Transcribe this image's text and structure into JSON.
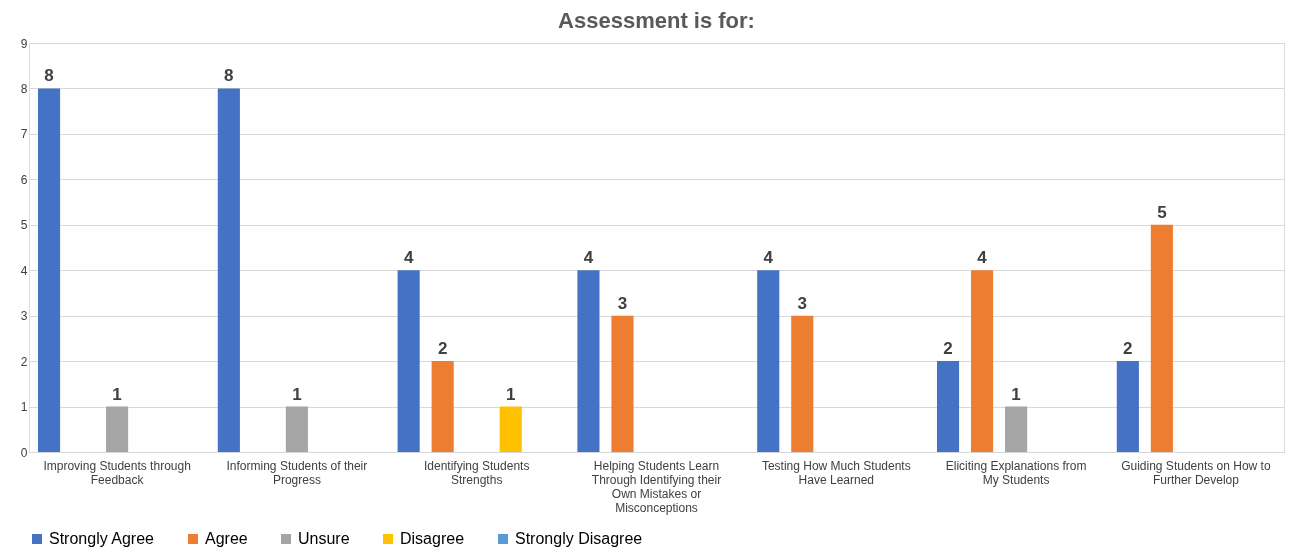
{
  "chart_data": {
    "type": "bar",
    "title": "Assessment is for:",
    "categories": [
      "Improving Students through Feedback",
      "Informing Students of their Progress",
      "Identifying Students Strengths",
      "Helping Students Learn Through Identifying their Own Mistakes or Misconceptions",
      "Testing How Much Students Have Learned",
      "Eliciting Explanations from My Students",
      "Guiding Students on How to Further Develop"
    ],
    "series": [
      {
        "name": "Strongly Agree",
        "color": "#4472c4",
        "values": [
          8,
          8,
          4,
          4,
          4,
          2,
          2
        ]
      },
      {
        "name": "Agree",
        "color": "#ed7d31",
        "values": [
          null,
          null,
          2,
          3,
          3,
          4,
          5
        ]
      },
      {
        "name": "Unsure",
        "color": "#a5a5a5",
        "values": [
          1,
          1,
          null,
          null,
          null,
          1,
          null
        ]
      },
      {
        "name": "Disagree",
        "color": "#ffc000",
        "values": [
          null,
          null,
          1,
          null,
          null,
          null,
          null
        ]
      },
      {
        "name": "Strongly Disagree",
        "color": "#5b9bd5",
        "values": [
          null,
          null,
          null,
          null,
          null,
          null,
          null
        ]
      }
    ],
    "ylim": [
      0,
      9
    ],
    "yticks": [
      0,
      1,
      2,
      3,
      4,
      5,
      6,
      7,
      8,
      9
    ],
    "grid": "y",
    "legend": "bottom",
    "data_labels": true
  }
}
